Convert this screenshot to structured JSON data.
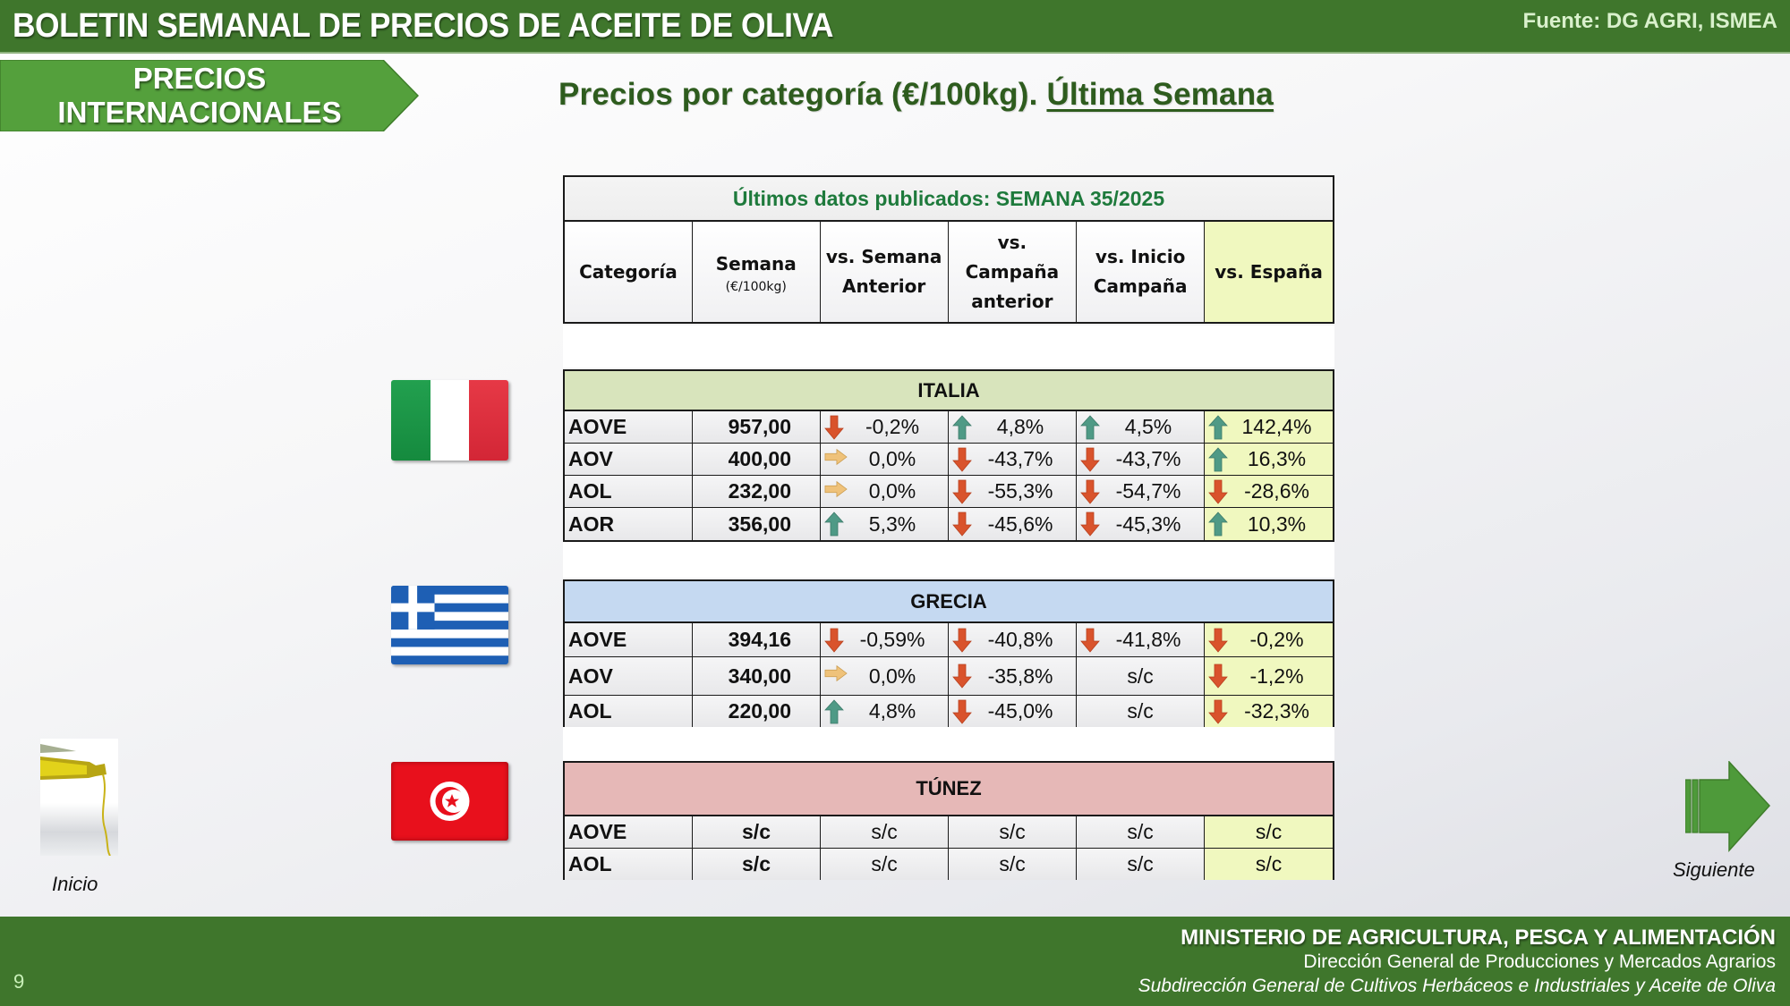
{
  "header": {
    "title": "BOLETIN SEMANAL DE PRECIOS DE ACEITE DE OLIVA",
    "source": "Fuente: DG AGRI, ISMEA"
  },
  "section_tag": {
    "line1": "PRECIOS",
    "line2": "INTERNACIONALES"
  },
  "page_title": {
    "main": "Precios por categoría (€/100kg). ",
    "underlined": "Última Semana"
  },
  "table": {
    "caption": "Últimos datos publicados: SEMANA 35/2025",
    "columns": [
      {
        "label": "Categoría"
      },
      {
        "label": "Semana",
        "sub": "(€/100kg)"
      },
      {
        "label": "vs. Semana Anterior"
      },
      {
        "label": "vs. Campaña anterior"
      },
      {
        "label": "vs. Inicio Campaña"
      },
      {
        "label": "vs. España"
      }
    ],
    "countries": [
      {
        "name": "ITALIA",
        "flag": "italy-flag",
        "color": "#d8e4bc",
        "rows": [
          {
            "cat": "AOVE",
            "price": "957,00",
            "vs_prev_week": {
              "v": "-0,2%",
              "t": "down"
            },
            "vs_prev_campaign": {
              "v": "4,8%",
              "t": "up"
            },
            "vs_campaign_start": {
              "v": "4,5%",
              "t": "up"
            },
            "vs_spain": {
              "v": "142,4%",
              "t": "up"
            }
          },
          {
            "cat": "AOV",
            "price": "400,00",
            "vs_prev_week": {
              "v": "0,0%",
              "t": "flat"
            },
            "vs_prev_campaign": {
              "v": "-43,7%",
              "t": "down"
            },
            "vs_campaign_start": {
              "v": "-43,7%",
              "t": "down"
            },
            "vs_spain": {
              "v": "16,3%",
              "t": "up"
            }
          },
          {
            "cat": "AOL",
            "price": "232,00",
            "vs_prev_week": {
              "v": "0,0%",
              "t": "flat"
            },
            "vs_prev_campaign": {
              "v": "-55,3%",
              "t": "down"
            },
            "vs_campaign_start": {
              "v": "-54,7%",
              "t": "down"
            },
            "vs_spain": {
              "v": "-28,6%",
              "t": "down"
            }
          },
          {
            "cat": "AOR",
            "price": "356,00",
            "vs_prev_week": {
              "v": "5,3%",
              "t": "up"
            },
            "vs_prev_campaign": {
              "v": "-45,6%",
              "t": "down"
            },
            "vs_campaign_start": {
              "v": "-45,3%",
              "t": "down"
            },
            "vs_spain": {
              "v": "10,3%",
              "t": "up"
            }
          }
        ]
      },
      {
        "name": "GRECIA",
        "flag": "greece-flag",
        "color": "#c5d9f1",
        "rows": [
          {
            "cat": "AOVE",
            "price": "394,16",
            "vs_prev_week": {
              "v": "-0,59%",
              "t": "down"
            },
            "vs_prev_campaign": {
              "v": "-40,8%",
              "t": "down"
            },
            "vs_campaign_start": {
              "v": "-41,8%",
              "t": "down"
            },
            "vs_spain": {
              "v": "-0,2%",
              "t": "down"
            }
          },
          {
            "cat": "AOV",
            "price": "340,00",
            "vs_prev_week": {
              "v": "0,0%",
              "t": "flat"
            },
            "vs_prev_campaign": {
              "v": "-35,8%",
              "t": "down"
            },
            "vs_campaign_start": {
              "v": "s/c",
              "t": "none"
            },
            "vs_spain": {
              "v": "-1,2%",
              "t": "down"
            }
          },
          {
            "cat": "AOL",
            "price": "220,00",
            "vs_prev_week": {
              "v": "4,8%",
              "t": "up"
            },
            "vs_prev_campaign": {
              "v": "-45,0%",
              "t": "down"
            },
            "vs_campaign_start": {
              "v": "s/c",
              "t": "none"
            },
            "vs_spain": {
              "v": "-32,3%",
              "t": "down"
            }
          }
        ]
      },
      {
        "name": "TÚNEZ",
        "flag": "tunisia-flag",
        "color": "#e6b8b7",
        "rows": [
          {
            "cat": "AOVE",
            "price": "s/c",
            "vs_prev_week": {
              "v": "s/c",
              "t": "none"
            },
            "vs_prev_campaign": {
              "v": "s/c",
              "t": "none"
            },
            "vs_campaign_start": {
              "v": "s/c",
              "t": "none"
            },
            "vs_spain": {
              "v": "s/c",
              "t": "none"
            }
          },
          {
            "cat": "AOL",
            "price": "s/c",
            "vs_prev_week": {
              "v": "s/c",
              "t": "none"
            },
            "vs_prev_campaign": {
              "v": "s/c",
              "t": "none"
            },
            "vs_campaign_start": {
              "v": "s/c",
              "t": "none"
            },
            "vs_spain": {
              "v": "s/c",
              "t": "none"
            }
          }
        ]
      }
    ]
  },
  "nav": {
    "home_label": "Inicio",
    "next_label": "Siguiente"
  },
  "footer": {
    "page_number": "9",
    "line1": "MINISTERIO DE AGRICULTURA, PESCA Y ALIMENTACIÓN",
    "line2": "Dirección General de Producciones y Mercados Agrarios",
    "line3": "Subdirección General de Cultivos Herbáceos e Industriales y Aceite de Oliva"
  },
  "colors": {
    "brand_green": "#3f762c",
    "tag_green": "#54a03c",
    "arrow_up": "#4f9a86",
    "arrow_down": "#d9532c",
    "arrow_flat": "#efc27a",
    "spain_col": "#f0f8bf"
  }
}
